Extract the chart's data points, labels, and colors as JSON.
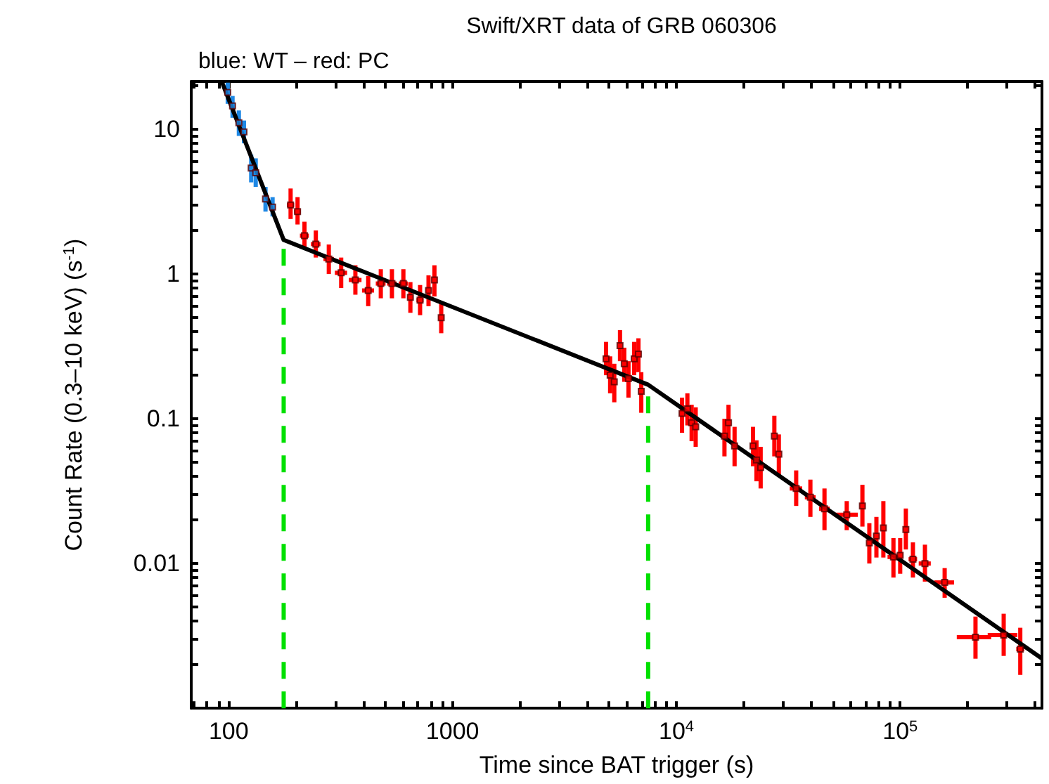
{
  "chart_data": {
    "type": "scatter",
    "title": "Swift/XRT data of GRB 060306",
    "subtitle": "blue: WT – red: PC",
    "xlabel": "Time since BAT trigger (s)",
    "ylabel": "Count Rate (0.3–10 keV) (s$^{-1}$)",
    "log": "xy",
    "xlim": [
      68,
      430000
    ],
    "ylim": [
      0.001,
      21.4
    ],
    "xticks": [
      {
        "value": 70,
        "label": null
      },
      {
        "value": 80,
        "label": null
      },
      {
        "value": 90,
        "label": null
      },
      100,
      {
        "value": 200,
        "label": null
      },
      {
        "value": 300,
        "label": null
      },
      {
        "value": 400,
        "label": null
      },
      {
        "value": 500,
        "label": null
      },
      {
        "value": 600,
        "label": null
      },
      {
        "value": 700,
        "label": null
      },
      {
        "value": 800,
        "label": null
      },
      {
        "value": 900,
        "label": null
      },
      1000,
      {
        "value": 2000,
        "label": null
      },
      {
        "value": 3000,
        "label": null
      },
      {
        "value": 4000,
        "label": null
      },
      {
        "value": 5000,
        "label": null
      },
      {
        "value": 6000,
        "label": null
      },
      {
        "value": 7000,
        "label": null
      },
      {
        "value": 8000,
        "label": null
      },
      {
        "value": 9000,
        "label": null
      },
      {
        "value": 10000,
        "label": "10$^{4}$"
      },
      {
        "value": 20000,
        "label": null
      },
      {
        "value": 30000,
        "label": null
      },
      {
        "value": 40000,
        "label": null
      },
      {
        "value": 50000,
        "label": null
      },
      {
        "value": 60000,
        "label": null
      },
      {
        "value": 70000,
        "label": null
      },
      {
        "value": 80000,
        "label": null
      },
      {
        "value": 90000,
        "label": null
      },
      {
        "value": 100000,
        "label": "10$^{5}$"
      },
      {
        "value": 200000,
        "label": null
      },
      {
        "value": 300000,
        "label": null
      },
      {
        "value": 400000,
        "label": null
      }
    ],
    "yticks": [
      {
        "value": 0.002,
        "label": null
      },
      {
        "value": 0.003,
        "label": null
      },
      {
        "value": 0.004,
        "label": null
      },
      {
        "value": 0.005,
        "label": null
      },
      {
        "value": 0.006,
        "label": null
      },
      {
        "value": 0.007,
        "label": null
      },
      {
        "value": 0.008,
        "label": null
      },
      {
        "value": 0.009,
        "label": null
      },
      0.01,
      {
        "value": 0.02,
        "label": null
      },
      {
        "value": 0.03,
        "label": null
      },
      {
        "value": 0.04,
        "label": null
      },
      {
        "value": 0.05,
        "label": null
      },
      {
        "value": 0.06,
        "label": null
      },
      {
        "value": 0.07,
        "label": null
      },
      {
        "value": 0.08,
        "label": null
      },
      {
        "value": 0.09,
        "label": null
      },
      0.1,
      {
        "value": 0.2,
        "label": null
      },
      {
        "value": 0.3,
        "label": null
      },
      {
        "value": 0.4,
        "label": null
      },
      {
        "value": 0.5,
        "label": null
      },
      {
        "value": 0.6,
        "label": null
      },
      {
        "value": 0.7,
        "label": null
      },
      {
        "value": 0.8,
        "label": null
      },
      {
        "value": 0.9,
        "label": null
      },
      1,
      {
        "value": 2,
        "label": null
      },
      {
        "value": 3,
        "label": null
      },
      {
        "value": 4,
        "label": null
      },
      {
        "value": 5,
        "label": null
      },
      {
        "value": 6,
        "label": null
      },
      {
        "value": 7,
        "label": null
      },
      {
        "value": 8,
        "label": null
      },
      {
        "value": 9,
        "label": null
      },
      10,
      {
        "value": 20,
        "label": null
      }
    ],
    "series": [
      {
        "color": "#1e88e5",
        "x": [
          99,
          104,
          111,
          117,
          126,
          132,
          146,
          157
        ],
        "values": [
          18,
          14.5,
          11.1,
          9.6,
          5.4,
          5.0,
          3.3,
          2.9
        ],
        "errors": [
          [
            15,
            21
          ],
          [
            12,
            17
          ],
          [
            9,
            13.5
          ],
          [
            8,
            11.5
          ],
          [
            4.3,
            6.7
          ],
          [
            4,
            6.3
          ],
          [
            2.7,
            4
          ],
          [
            2.5,
            3.4
          ]
        ],
        "xerrors": [
          2,
          2,
          2,
          2,
          3,
          3,
          3,
          3
        ]
      },
      {
        "color": "#ff0000",
        "x": [
          189,
          203,
          218,
          245,
          280,
          318,
          368,
          420,
          478,
          536,
          603,
          648,
          716,
          781,
          830,
          890,
          4850,
          5060,
          5280,
          5600,
          5850,
          6110,
          6480,
          6770,
          6970,
          10600,
          11200,
          11700,
          12200,
          16400,
          17100,
          18200,
          22000,
          22800,
          23800,
          27400,
          28700,
          34300,
          39700,
          45900,
          57700,
          67800,
          72800,
          78300,
          84100,
          93300,
          100000,
          106000,
          114000,
          129000,
          158000,
          217000,
          290000,
          344000
        ],
        "values": [
          3.0,
          2.7,
          1.84,
          1.61,
          1.27,
          1.02,
          0.91,
          0.77,
          0.86,
          0.86,
          0.86,
          0.69,
          0.66,
          0.77,
          0.91,
          0.5,
          0.26,
          0.2,
          0.18,
          0.32,
          0.24,
          0.19,
          0.26,
          0.28,
          0.155,
          0.109,
          0.117,
          0.094,
          0.088,
          0.076,
          0.094,
          0.065,
          0.065,
          0.052,
          0.046,
          0.076,
          0.057,
          0.033,
          0.0287,
          0.0239,
          0.0217,
          0.025,
          0.0139,
          0.0155,
          0.0176,
          0.0111,
          0.0114,
          0.0172,
          0.0107,
          0.01,
          0.0074,
          0.0031,
          0.0032,
          0.00256
        ],
        "errors": [
          [
            2.4,
            3.9
          ],
          [
            2.2,
            3.4
          ],
          [
            1.5,
            2.3
          ],
          [
            1.3,
            2.0
          ],
          [
            1.0,
            1.6
          ],
          [
            0.8,
            1.3
          ],
          [
            0.72,
            1.15
          ],
          [
            0.6,
            0.97
          ],
          [
            0.68,
            1.08
          ],
          [
            0.68,
            1.08
          ],
          [
            0.68,
            1.08
          ],
          [
            0.54,
            0.88
          ],
          [
            0.52,
            0.84
          ],
          [
            0.6,
            0.98
          ],
          [
            0.7,
            1.15
          ],
          [
            0.39,
            0.64
          ],
          [
            0.2,
            0.34
          ],
          [
            0.15,
            0.27
          ],
          [
            0.13,
            0.24
          ],
          [
            0.25,
            0.41
          ],
          [
            0.18,
            0.31
          ],
          [
            0.14,
            0.25
          ],
          [
            0.2,
            0.34
          ],
          [
            0.21,
            0.36
          ],
          [
            0.11,
            0.21
          ],
          [
            0.08,
            0.14
          ],
          [
            0.09,
            0.15
          ],
          [
            0.07,
            0.125
          ],
          [
            0.064,
            0.12
          ],
          [
            0.055,
            0.1
          ],
          [
            0.07,
            0.125
          ],
          [
            0.047,
            0.088
          ],
          [
            0.047,
            0.088
          ],
          [
            0.037,
            0.071
          ],
          [
            0.033,
            0.064
          ],
          [
            0.055,
            0.105
          ],
          [
            0.041,
            0.078
          ],
          [
            0.025,
            0.044
          ],
          [
            0.021,
            0.038
          ],
          [
            0.017,
            0.033
          ],
          [
            0.017,
            0.027
          ],
          [
            0.018,
            0.035
          ],
          [
            0.01,
            0.019
          ],
          [
            0.011,
            0.021
          ],
          [
            0.011,
            0.027
          ],
          [
            0.008,
            0.015
          ],
          [
            0.0085,
            0.015
          ],
          [
            0.0125,
            0.024
          ],
          [
            0.008,
            0.014
          ],
          [
            0.0075,
            0.0135
          ],
          [
            0.0058,
            0.0093
          ],
          [
            0.0022,
            0.0043
          ],
          [
            0.0023,
            0.0045
          ],
          [
            0.0017,
            0.0036
          ]
        ],
        "xerrors": [
          7,
          7,
          10,
          12,
          15,
          20,
          24,
          26,
          24,
          26,
          28,
          18,
          26,
          22,
          20,
          25,
          100,
          100,
          100,
          100,
          100,
          120,
          120,
          120,
          120,
          200,
          200,
          200,
          200,
          300,
          300,
          300,
          400,
          400,
          400,
          500,
          500,
          2200,
          2200,
          2500,
          7000,
          1800,
          2000,
          2200,
          2000,
          5500,
          2500,
          2500,
          5000,
          8000,
          16000,
          38000,
          44000,
          14000
        ]
      },
      {
        "type": "line",
        "color": "#000000",
        "x": [
          93.5,
          176,
          7480,
          426000
        ],
        "values": [
          21,
          1.72,
          0.172,
          0.00223
        ]
      }
    ],
    "ref_lines": [
      {
        "axis": "x",
        "value": 176,
        "color": "#00e000",
        "line_style": "dashed"
      },
      {
        "axis": "x",
        "value": 7480,
        "color": "#00e000",
        "line_style": "dashed"
      }
    ]
  }
}
